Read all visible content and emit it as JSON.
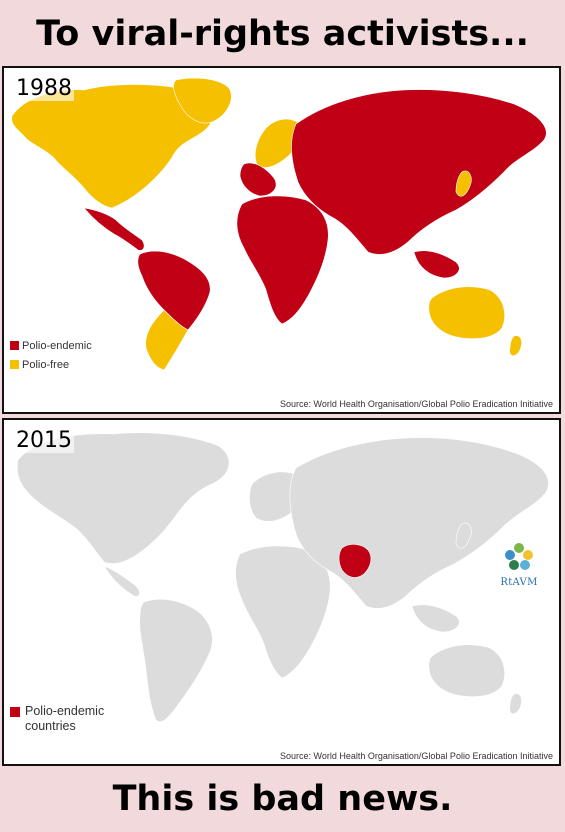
{
  "header": {
    "title": "To viral-rights activists..."
  },
  "footer": {
    "caption": "This is bad news."
  },
  "map_1988": {
    "year": "1988",
    "legend": [
      {
        "label": "Polio-endemic",
        "color": "#c00015"
      },
      {
        "label": "Polio-free",
        "color": "#f5c000"
      }
    ],
    "source": "Source: World Health Organisation/Global Polio Eradication Initiative"
  },
  "map_2015": {
    "year": "2015",
    "legend": [
      {
        "label": "Polio-endemic countries",
        "color": "#c00015"
      }
    ],
    "source": "Source: World Health Organisation/Global Polio Eradication Initiative",
    "logo_text": "RtAVM",
    "base_color": "#dcdcdc"
  },
  "icons": {
    "logo": "rtavm-logo-icon"
  }
}
